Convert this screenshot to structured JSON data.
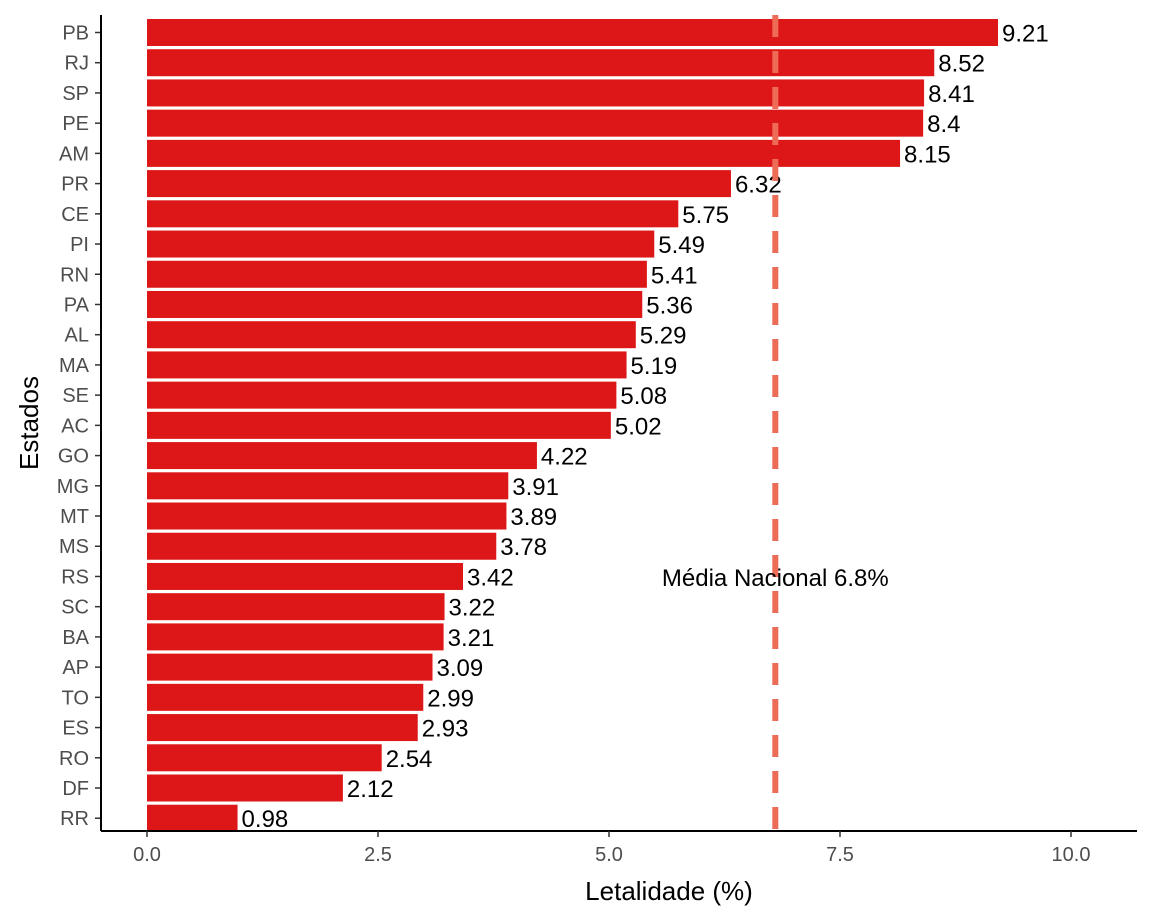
{
  "chart_data": {
    "type": "bar",
    "orientation": "horizontal",
    "categories": [
      "PB",
      "RJ",
      "SP",
      "PE",
      "AM",
      "PR",
      "CE",
      "PI",
      "RN",
      "PA",
      "AL",
      "MA",
      "SE",
      "AC",
      "GO",
      "MG",
      "MT",
      "MS",
      "RS",
      "SC",
      "BA",
      "AP",
      "TO",
      "ES",
      "RO",
      "DF",
      "RR"
    ],
    "values": [
      9.21,
      8.52,
      8.41,
      8.4,
      8.15,
      6.32,
      5.75,
      5.49,
      5.41,
      5.36,
      5.29,
      5.19,
      5.08,
      5.02,
      4.22,
      3.91,
      3.89,
      3.78,
      3.42,
      3.22,
      3.21,
      3.09,
      2.99,
      2.93,
      2.54,
      2.12,
      0.98
    ],
    "value_labels": [
      "9.21",
      "8.52",
      "8.41",
      "8.4",
      "8.15",
      "6.32",
      "5.75",
      "5.49",
      "5.41",
      "5.36",
      "5.29",
      "5.19",
      "5.08",
      "5.02",
      "4.22",
      "3.91",
      "3.89",
      "3.78",
      "3.42",
      "3.22",
      "3.21",
      "3.09",
      "2.99",
      "2.93",
      "2.54",
      "2.12",
      "0.98"
    ],
    "xlabel": "Letalidade (%)",
    "ylabel": "Estados",
    "xlim": [
      0,
      10
    ],
    "xticks": [
      0,
      2.5,
      5,
      7.5,
      10
    ],
    "xtick_labels": [
      "0.0",
      "2.5",
      "5.0",
      "7.5",
      "10.0"
    ],
    "reference_line": {
      "value": 6.8,
      "style": "dashed",
      "label": "Média Nacional 6.8%"
    },
    "grid": false,
    "bar_color": "#dd1717",
    "reference_color": "#ee6b55"
  }
}
